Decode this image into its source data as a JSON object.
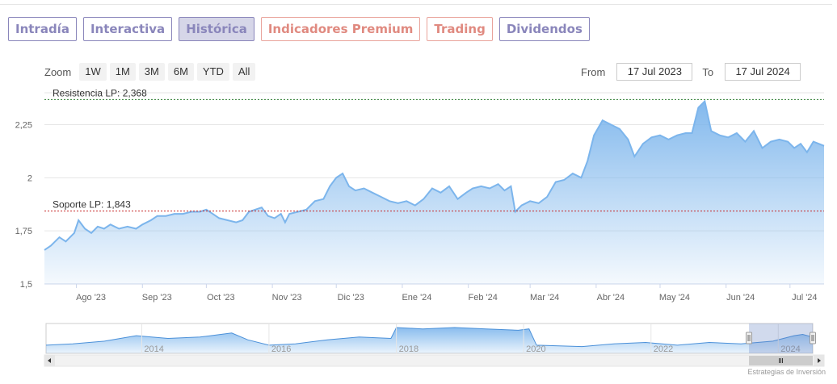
{
  "tabs": [
    {
      "label": "Intradía",
      "kind": "normal"
    },
    {
      "label": "Interactiva",
      "kind": "normal"
    },
    {
      "label": "Histórica",
      "kind": "active"
    },
    {
      "label": "Indicadores Premium",
      "kind": "premium"
    },
    {
      "label": "Trading",
      "kind": "premium"
    },
    {
      "label": "Dividendos",
      "kind": "normal"
    }
  ],
  "zoom": {
    "label": "Zoom",
    "buttons": [
      "1W",
      "1M",
      "3M",
      "6M",
      "YTD",
      "All"
    ]
  },
  "range": {
    "from_label": "From",
    "from_value": "17 Jul 2023",
    "to_label": "To",
    "to_value": "17 Jul 2024"
  },
  "credit": "Estrategias de Inversión",
  "colors": {
    "series": "#7cb5ec",
    "resistance": "#2e7d32",
    "support": "#c62828",
    "tab_border": "#8a86bb",
    "premium_border": "#e9a39b"
  },
  "chart_data": {
    "type": "area",
    "x_range": [
      "2023-07-17",
      "2024-07-17"
    ],
    "ylim": [
      1.5,
      2.4
    ],
    "y_ticks": [
      {
        "value": 1.5,
        "label": "1,5"
      },
      {
        "value": 1.75,
        "label": "1,75"
      },
      {
        "value": 2.0,
        "label": "2"
      },
      {
        "value": 2.25,
        "label": "2,25"
      }
    ],
    "x_ticks": [
      {
        "date": "2023-08-01",
        "label": "Ago '23"
      },
      {
        "date": "2023-09-01",
        "label": "Sep '23"
      },
      {
        "date": "2023-10-01",
        "label": "Oct '23"
      },
      {
        "date": "2023-11-01",
        "label": "Nov '23"
      },
      {
        "date": "2023-12-01",
        "label": "Dic '23"
      },
      {
        "date": "2024-01-01",
        "label": "Ene '24"
      },
      {
        "date": "2024-02-01",
        "label": "Feb '24"
      },
      {
        "date": "2024-03-01",
        "label": "Mar '24"
      },
      {
        "date": "2024-04-01",
        "label": "Abr '24"
      },
      {
        "date": "2024-05-01",
        "label": "May '24"
      },
      {
        "date": "2024-06-01",
        "label": "Jun '24"
      },
      {
        "date": "2024-07-01",
        "label": "Jul '24"
      }
    ],
    "grid": true,
    "plot_lines": [
      {
        "label": "Resistencia LP: 2,368",
        "value": 2.368,
        "kind": "resistance"
      },
      {
        "label": "Soporte LP: 1,843",
        "value": 1.843,
        "kind": "support"
      }
    ],
    "series": [
      {
        "values": [
          [
            "2023-07-17",
            1.66
          ],
          [
            "2023-07-20",
            1.68
          ],
          [
            "2023-07-24",
            1.72
          ],
          [
            "2023-07-27",
            1.7
          ],
          [
            "2023-07-31",
            1.74
          ],
          [
            "2023-08-02",
            1.8
          ],
          [
            "2023-08-05",
            1.76
          ],
          [
            "2023-08-08",
            1.74
          ],
          [
            "2023-08-11",
            1.77
          ],
          [
            "2023-08-14",
            1.76
          ],
          [
            "2023-08-17",
            1.78
          ],
          [
            "2023-08-21",
            1.76
          ],
          [
            "2023-08-25",
            1.77
          ],
          [
            "2023-08-29",
            1.76
          ],
          [
            "2023-09-01",
            1.78
          ],
          [
            "2023-09-05",
            1.8
          ],
          [
            "2023-09-08",
            1.82
          ],
          [
            "2023-09-12",
            1.82
          ],
          [
            "2023-09-16",
            1.83
          ],
          [
            "2023-09-20",
            1.83
          ],
          [
            "2023-09-24",
            1.84
          ],
          [
            "2023-09-28",
            1.84
          ],
          [
            "2023-10-01",
            1.85
          ],
          [
            "2023-10-04",
            1.83
          ],
          [
            "2023-10-07",
            1.81
          ],
          [
            "2023-10-11",
            1.8
          ],
          [
            "2023-10-15",
            1.79
          ],
          [
            "2023-10-18",
            1.8
          ],
          [
            "2023-10-21",
            1.84
          ],
          [
            "2023-10-24",
            1.85
          ],
          [
            "2023-10-27",
            1.86
          ],
          [
            "2023-10-30",
            1.82
          ],
          [
            "2023-11-02",
            1.81
          ],
          [
            "2023-11-05",
            1.83
          ],
          [
            "2023-11-07",
            1.79
          ],
          [
            "2023-11-09",
            1.83
          ],
          [
            "2023-11-13",
            1.84
          ],
          [
            "2023-11-17",
            1.85
          ],
          [
            "2023-11-21",
            1.89
          ],
          [
            "2023-11-25",
            1.9
          ],
          [
            "2023-11-28",
            1.96
          ],
          [
            "2023-12-01",
            2.0
          ],
          [
            "2023-12-04",
            2.02
          ],
          [
            "2023-12-07",
            1.96
          ],
          [
            "2023-12-10",
            1.94
          ],
          [
            "2023-12-14",
            1.95
          ],
          [
            "2023-12-18",
            1.93
          ],
          [
            "2023-12-22",
            1.91
          ],
          [
            "2023-12-26",
            1.89
          ],
          [
            "2023-12-30",
            1.88
          ],
          [
            "2024-01-03",
            1.89
          ],
          [
            "2024-01-07",
            1.87
          ],
          [
            "2024-01-11",
            1.9
          ],
          [
            "2024-01-15",
            1.95
          ],
          [
            "2024-01-19",
            1.93
          ],
          [
            "2024-01-23",
            1.96
          ],
          [
            "2024-01-27",
            1.9
          ],
          [
            "2024-01-31",
            1.93
          ],
          [
            "2024-02-03",
            1.95
          ],
          [
            "2024-02-07",
            1.96
          ],
          [
            "2024-02-11",
            1.95
          ],
          [
            "2024-02-15",
            1.97
          ],
          [
            "2024-02-18",
            1.94
          ],
          [
            "2024-02-21",
            1.96
          ],
          [
            "2024-02-23",
            1.84
          ],
          [
            "2024-02-26",
            1.87
          ],
          [
            "2024-03-01",
            1.89
          ],
          [
            "2024-03-05",
            1.88
          ],
          [
            "2024-03-09",
            1.91
          ],
          [
            "2024-03-13",
            1.98
          ],
          [
            "2024-03-17",
            1.99
          ],
          [
            "2024-03-21",
            2.02
          ],
          [
            "2024-03-25",
            2.0
          ],
          [
            "2024-03-28",
            2.08
          ],
          [
            "2024-03-31",
            2.2
          ],
          [
            "2024-04-04",
            2.27
          ],
          [
            "2024-04-08",
            2.25
          ],
          [
            "2024-04-12",
            2.23
          ],
          [
            "2024-04-16",
            2.18
          ],
          [
            "2024-04-19",
            2.1
          ],
          [
            "2024-04-23",
            2.16
          ],
          [
            "2024-04-27",
            2.19
          ],
          [
            "2024-05-01",
            2.2
          ],
          [
            "2024-05-05",
            2.18
          ],
          [
            "2024-05-09",
            2.2
          ],
          [
            "2024-05-13",
            2.21
          ],
          [
            "2024-05-16",
            2.21
          ],
          [
            "2024-05-19",
            2.33
          ],
          [
            "2024-05-22",
            2.36
          ],
          [
            "2024-05-25",
            2.22
          ],
          [
            "2024-05-29",
            2.2
          ],
          [
            "2024-06-02",
            2.19
          ],
          [
            "2024-06-06",
            2.21
          ],
          [
            "2024-06-10",
            2.17
          ],
          [
            "2024-06-14",
            2.22
          ],
          [
            "2024-06-18",
            2.14
          ],
          [
            "2024-06-22",
            2.17
          ],
          [
            "2024-06-26",
            2.18
          ],
          [
            "2024-06-30",
            2.17
          ],
          [
            "2024-07-03",
            2.14
          ],
          [
            "2024-07-06",
            2.16
          ],
          [
            "2024-07-09",
            2.12
          ],
          [
            "2024-07-12",
            2.17
          ],
          [
            "2024-07-17",
            2.15
          ]
        ]
      }
    ],
    "navigator": {
      "labels": [
        "2014",
        "2016",
        "2018",
        "2020",
        "2022",
        "2024"
      ],
      "label_dates": [
        "2014-01-01",
        "2016-01-01",
        "2018-01-01",
        "2020-01-01",
        "2022-01-01",
        "2024-01-01"
      ],
      "x_range": [
        "2012-07-01",
        "2024-07-17"
      ],
      "selected_range": [
        "2023-07-17",
        "2024-07-17"
      ],
      "ylim": [
        1.0,
        3.2
      ],
      "values": [
        [
          "2012-07-01",
          1.6
        ],
        [
          "2012-12-01",
          1.7
        ],
        [
          "2013-06-01",
          1.9
        ],
        [
          "2013-12-01",
          2.3
        ],
        [
          "2014-06-01",
          2.1
        ],
        [
          "2014-12-01",
          2.2
        ],
        [
          "2015-06-01",
          2.5
        ],
        [
          "2015-09-01",
          2.0
        ],
        [
          "2016-01-01",
          1.6
        ],
        [
          "2016-06-01",
          1.7
        ],
        [
          "2016-12-01",
          2.0
        ],
        [
          "2017-06-01",
          2.2
        ],
        [
          "2017-12-01",
          2.1
        ],
        [
          "2018-01-01",
          2.9
        ],
        [
          "2018-06-01",
          2.8
        ],
        [
          "2018-12-01",
          2.9
        ],
        [
          "2019-06-01",
          2.8
        ],
        [
          "2019-12-01",
          2.7
        ],
        [
          "2020-02-01",
          2.8
        ],
        [
          "2020-03-15",
          1.6
        ],
        [
          "2020-12-01",
          1.5
        ],
        [
          "2021-06-01",
          1.7
        ],
        [
          "2021-12-01",
          1.8
        ],
        [
          "2022-06-01",
          1.6
        ],
        [
          "2022-12-01",
          1.8
        ],
        [
          "2023-06-01",
          1.7
        ],
        [
          "2023-12-01",
          1.9
        ],
        [
          "2024-04-01",
          2.3
        ],
        [
          "2024-05-20",
          2.4
        ],
        [
          "2024-07-17",
          2.2
        ]
      ]
    }
  }
}
